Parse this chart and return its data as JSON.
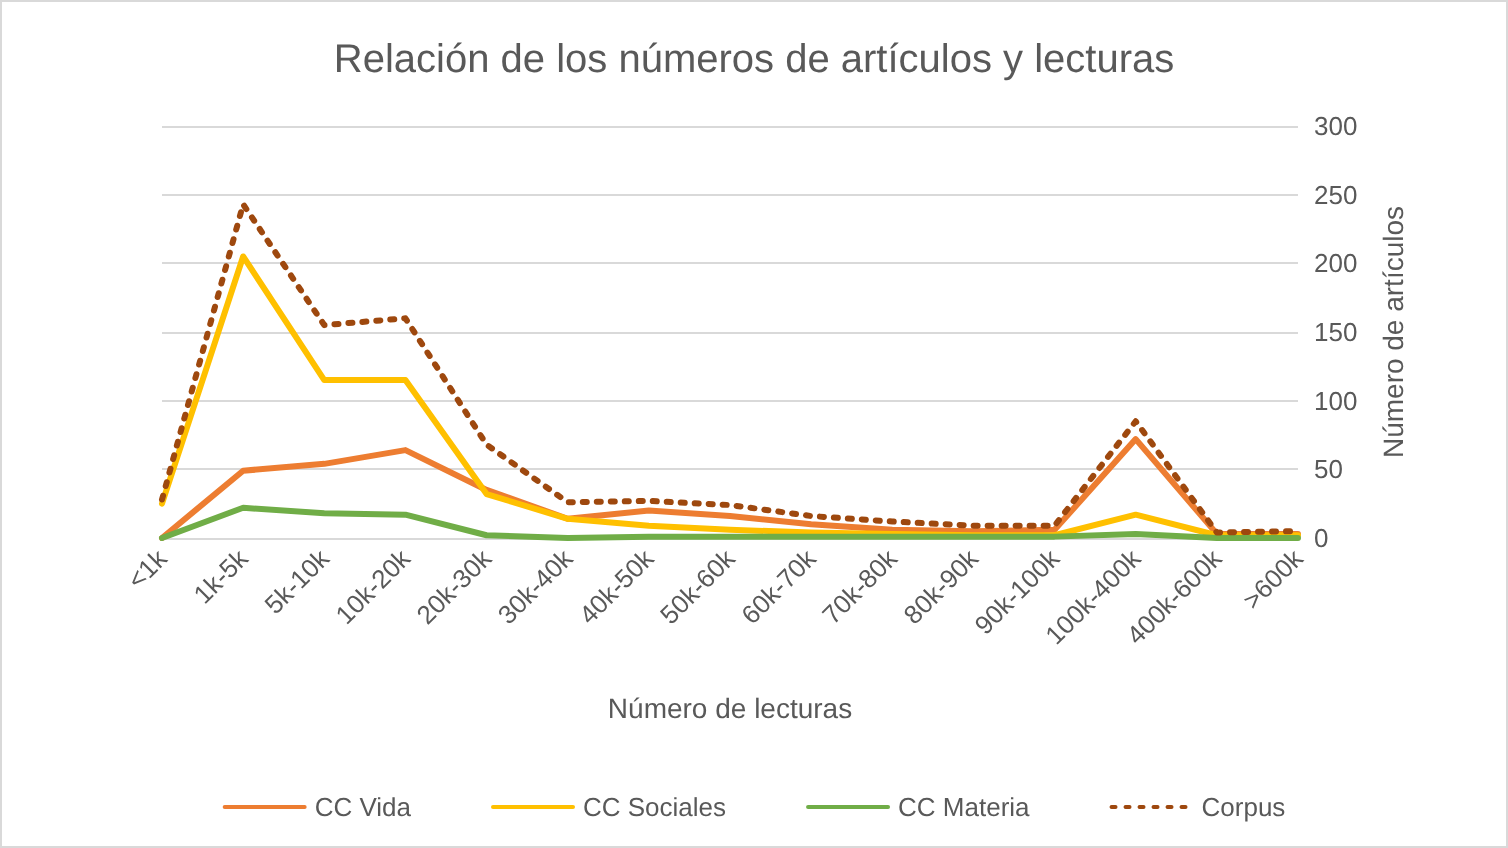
{
  "chart_data": {
    "type": "line",
    "title": "Relación de los números de artículos y lecturas",
    "xlabel": "Número de lecturas",
    "y2label": "Número de artículos",
    "categories": [
      "<1k",
      "1k-5k",
      "5k-10k",
      "10k-20k",
      "20k-30k",
      "30k-40k",
      "40k-50k",
      "50k-60k",
      "60k-70k",
      "70k-80k",
      "80k-90k",
      "90k-100k",
      "100k-400k",
      "400k-600k",
      ">600k"
    ],
    "series": [
      {
        "name": "CC Vida",
        "color": "#ed7d31",
        "axis": "y2",
        "values": [
          0,
          49,
          54,
          64,
          35,
          14,
          20,
          16,
          10,
          6,
          5,
          6,
          72,
          3,
          3
        ]
      },
      {
        "name": "CC Sociales",
        "color": "#ffc000",
        "axis": "y2",
        "values": [
          25,
          205,
          115,
          115,
          32,
          14,
          9,
          6,
          4,
          3,
          2,
          2,
          17,
          2,
          2
        ]
      },
      {
        "name": "CC Materia",
        "color": "#70ad47",
        "axis": "y2",
        "values": [
          0,
          22,
          18,
          17,
          2,
          0,
          1,
          1,
          1,
          1,
          1,
          1,
          3,
          0,
          0
        ]
      },
      {
        "name": "Corpus",
        "color": "#9e480e",
        "axis": "y2",
        "line_style": "dotted",
        "values": [
          28,
          243,
          155,
          160,
          68,
          26,
          27,
          24,
          16,
          12,
          9,
          9,
          85,
          4,
          5
        ]
      }
    ],
    "y2lim": [
      0,
      300
    ],
    "y2ticks": [
      0,
      50,
      100,
      150,
      200,
      250,
      300
    ],
    "grid": "y",
    "legend": "bottom",
    "marker": "none"
  }
}
